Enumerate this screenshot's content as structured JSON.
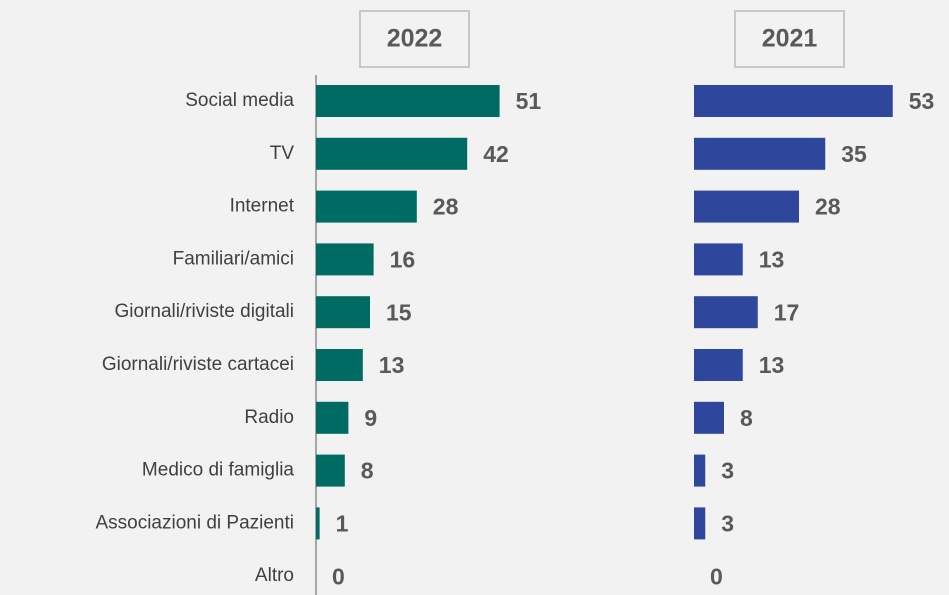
{
  "chart_data": {
    "type": "bar",
    "orientation": "horizontal",
    "categories": [
      "Social media",
      "TV",
      "Internet",
      "Familiari/amici",
      "Giornali/riviste digitali",
      "Giornali/riviste cartacei",
      "Radio",
      "Medico di famiglia",
      "Associazioni di Pazienti",
      "Altro"
    ],
    "series": [
      {
        "name": "2022",
        "color": "#006b63",
        "values": [
          51,
          42,
          28,
          16,
          15,
          13,
          9,
          8,
          1,
          0
        ]
      },
      {
        "name": "2021",
        "color": "#2e479c",
        "values": [
          53,
          35,
          28,
          13,
          17,
          13,
          8,
          3,
          3,
          0
        ]
      }
    ]
  }
}
